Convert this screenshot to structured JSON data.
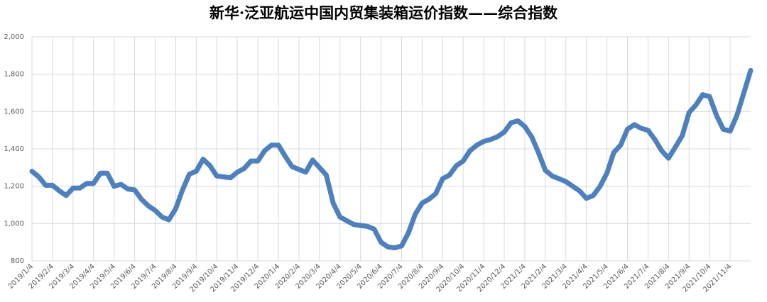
{
  "chart_data": {
    "type": "line",
    "title": "新华·泛亚航运中国内贸集装箱运价指数——综合指数",
    "categories": [
      "2019/1/4",
      null,
      null,
      "2019/2/4",
      null,
      null,
      "2019/3/4",
      null,
      null,
      "2019/4/4",
      null,
      null,
      "2019/5/4",
      null,
      null,
      "2019/6/4",
      null,
      null,
      "2019/7/4",
      null,
      null,
      "2019/8/4",
      null,
      null,
      "2019/9/4",
      null,
      null,
      "2019/10/4",
      null,
      null,
      "2019/11/4",
      null,
      null,
      "2019/12/4",
      null,
      null,
      "2020/1/4",
      null,
      null,
      "2020/2/4",
      null,
      null,
      "2020/3/4",
      null,
      null,
      "2020/4/4",
      null,
      null,
      "2020/5/4",
      null,
      null,
      "2020/6/4",
      null,
      null,
      "2020/7/4",
      null,
      null,
      "2020/8/4",
      null,
      null,
      "2020/9/4",
      null,
      null,
      "2020/10/4",
      null,
      null,
      "2020/11/4",
      null,
      null,
      "2020/12/4",
      null,
      null,
      "2021/1/4",
      null,
      null,
      "2021/2/4",
      null,
      null,
      "2021/3/4",
      null,
      null,
      "2021/4/4",
      null,
      null,
      "2021/5/4",
      null,
      null,
      "2021/6/4",
      null,
      null,
      "2021/7/4",
      null,
      null,
      "2021/8/4",
      null,
      null,
      "2021/9/4",
      null,
      null,
      "2021/10/4",
      null,
      null,
      "2021/11/4",
      null,
      null,
      null
    ],
    "series": [
      {
        "name": "综合指数",
        "color": "#4e80bd",
        "values": [
          1280,
          1250,
          1205,
          1205,
          1175,
          1150,
          1190,
          1190,
          1215,
          1215,
          1270,
          1270,
          1200,
          1210,
          1185,
          1180,
          1130,
          1095,
          1070,
          1035,
          1020,
          1080,
          1180,
          1265,
          1280,
          1345,
          1310,
          1255,
          1250,
          1245,
          1275,
          1295,
          1335,
          1335,
          1390,
          1420,
          1420,
          1360,
          1305,
          1290,
          1275,
          1340,
          1300,
          1260,
          1110,
          1035,
          1015,
          995,
          990,
          985,
          970,
          900,
          875,
          870,
          880,
          950,
          1050,
          1110,
          1130,
          1160,
          1240,
          1260,
          1310,
          1335,
          1390,
          1420,
          1440,
          1450,
          1465,
          1490,
          1540,
          1550,
          1520,
          1465,
          1380,
          1285,
          1255,
          1240,
          1225,
          1200,
          1175,
          1135,
          1150,
          1200,
          1270,
          1380,
          1420,
          1505,
          1530,
          1510,
          1500,
          1450,
          1390,
          1350,
          1410,
          1470,
          1595,
          1635,
          1690,
          1680,
          1580,
          1505,
          1495,
          1580,
          1700,
          1820
        ]
      }
    ],
    "ylim": [
      800,
      2000
    ],
    "yticks": [
      800,
      {
        "value": 1000,
        "label": "1,000"
      },
      {
        "value": 1200,
        "label": "1,200"
      },
      {
        "value": 1400,
        "label": "1,400"
      },
      {
        "value": 1600,
        "label": "1,600"
      },
      {
        "value": 1800,
        "label": "1,800"
      },
      {
        "value": 2000,
        "label": "2,000"
      }
    ],
    "grid": true
  }
}
